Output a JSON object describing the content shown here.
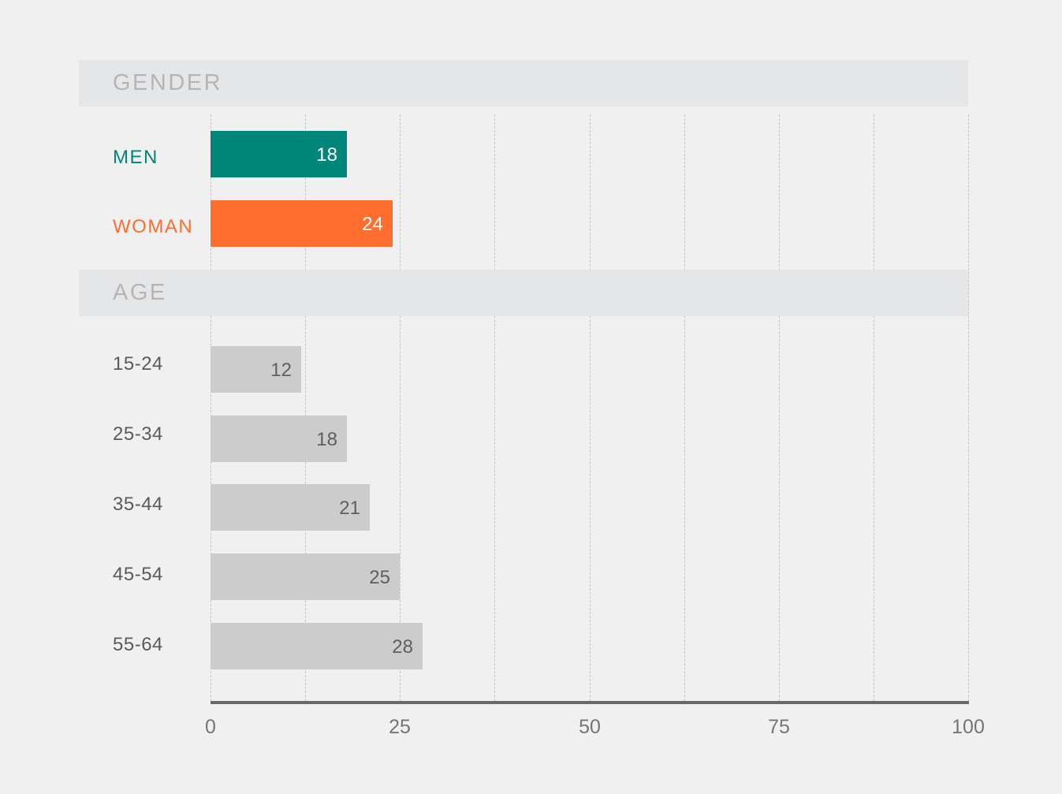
{
  "chart_data": {
    "type": "bar",
    "orientation": "horizontal",
    "xlim": [
      0,
      100
    ],
    "x_ticks": [
      "0",
      "25",
      "50",
      "75",
      "100"
    ],
    "grid": true,
    "groups": [
      {
        "title": "GENDER",
        "categories": [
          "MEN",
          "WOMAN"
        ],
        "values": [
          18,
          24
        ],
        "colors": [
          "#00877a",
          "#ff6d2f"
        ],
        "label_colors": [
          "#00877a",
          "#ff6d2f"
        ],
        "value_label_colors": [
          "#ffffff",
          "#ffffff"
        ]
      },
      {
        "title": "AGE",
        "categories": [
          "15-24",
          "25-34",
          "35-44",
          "45-54",
          "55-64"
        ],
        "values": [
          12,
          18,
          21,
          25,
          28
        ],
        "colors": [
          "#cccccc",
          "#cccccc",
          "#cccccc",
          "#cccccc",
          "#cccccc"
        ],
        "label_colors": [
          "#5a5a5a",
          "#5a5a5a",
          "#5a5a5a",
          "#5a5a5a",
          "#5a5a5a"
        ],
        "value_label_colors": [
          "#5f5f5f",
          "#5f5f5f",
          "#5f5f5f",
          "#5f5f5f",
          "#5f5f5f"
        ]
      }
    ]
  }
}
